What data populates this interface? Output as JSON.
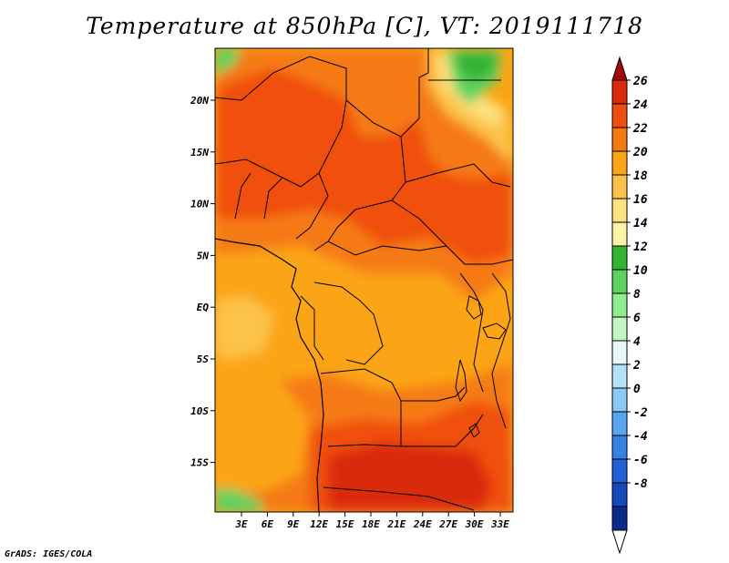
{
  "title": "Temperature at 850hPa [C], VT: 2019111718",
  "credit": "GrADS: IGES/COLA",
  "axes": {
    "lon_ticks": [
      "3E",
      "6E",
      "9E",
      "12E",
      "15E",
      "18E",
      "21E",
      "24E",
      "27E",
      "30E",
      "33E"
    ],
    "lat_ticks": [
      "20N",
      "15N",
      "10N",
      "5N",
      "EQ",
      "5S",
      "10S",
      "15S"
    ]
  },
  "colorbar": {
    "levels": [
      "26",
      "24",
      "22",
      "20",
      "18",
      "16",
      "14",
      "12",
      "10",
      "8",
      "6",
      "4",
      "2",
      "0",
      "-2",
      "-4",
      "-6",
      "-8"
    ],
    "colors": [
      "#a50a08",
      "#d92a0c",
      "#f0500f",
      "#f57a12",
      "#fba415",
      "#fcc34a",
      "#fde07f",
      "#fff2a6",
      "#32b432",
      "#5fd25f",
      "#90ec90",
      "#c2f6c2",
      "#e6f7f7",
      "#b4e1f5",
      "#8ac8f5",
      "#5aa5ef",
      "#3b82e6",
      "#2461d6",
      "#1a47b8",
      "#0c2a8c",
      "#ffffff"
    ]
  },
  "palette": {
    "very_hot": "#d92a0c",
    "hot": "#f0500f",
    "warm": "#f57a12",
    "mild": "#fba415",
    "light": "#fcc34a",
    "pale": "#fde07f",
    "cool_green": "#5fd25f",
    "green": "#32b432"
  }
}
